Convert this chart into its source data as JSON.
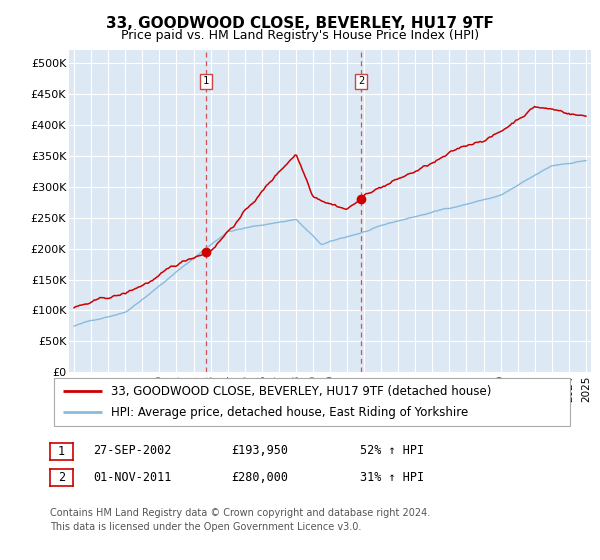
{
  "title": "33, GOODWOOD CLOSE, BEVERLEY, HU17 9TF",
  "subtitle": "Price paid vs. HM Land Registry's House Price Index (HPI)",
  "ylabel_ticks": [
    "£0",
    "£50K",
    "£100K",
    "£150K",
    "£200K",
    "£250K",
    "£300K",
    "£350K",
    "£400K",
    "£450K",
    "£500K"
  ],
  "ytick_values": [
    0,
    50000,
    100000,
    150000,
    200000,
    250000,
    300000,
    350000,
    400000,
    450000,
    500000
  ],
  "ylim": [
    0,
    520000
  ],
  "xlim_start": 1994.7,
  "xlim_end": 2025.3,
  "sale1_x": 2002.74,
  "sale1_y": 193950,
  "sale1_label": "1",
  "sale2_x": 2011.83,
  "sale2_y": 280000,
  "sale2_label": "2",
  "red_line_color": "#cc0000",
  "blue_line_color": "#88bbdd",
  "dashed_line_color": "#cc4444",
  "plot_bg_color": "#dce9f5",
  "fig_bg_color": "#ffffff",
  "grid_color": "#ffffff",
  "legend_label_red": "33, GOODWOOD CLOSE, BEVERLEY, HU17 9TF (detached house)",
  "legend_label_blue": "HPI: Average price, detached house, East Riding of Yorkshire",
  "table_row1": [
    "1",
    "27-SEP-2002",
    "£193,950",
    "52% ↑ HPI"
  ],
  "table_row2": [
    "2",
    "01-NOV-2011",
    "£280,000",
    "31% ↑ HPI"
  ],
  "footnote": "Contains HM Land Registry data © Crown copyright and database right 2024.\nThis data is licensed under the Open Government Licence v3.0.",
  "title_fontsize": 11,
  "subtitle_fontsize": 9,
  "tick_fontsize": 8,
  "legend_fontsize": 8.5,
  "table_fontsize": 8.5,
  "footnote_fontsize": 7
}
